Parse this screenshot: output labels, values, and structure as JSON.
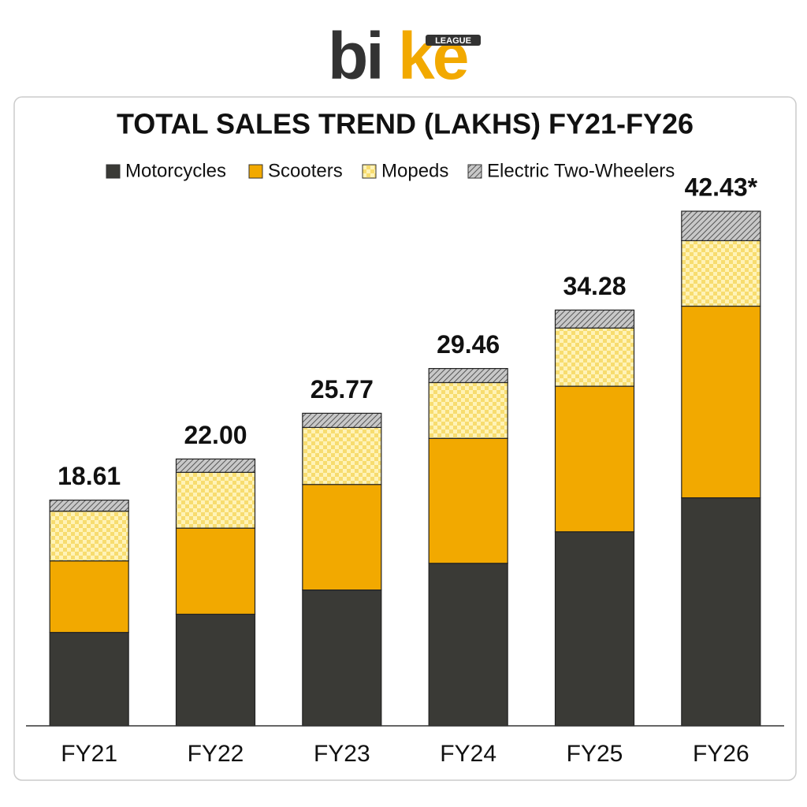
{
  "logo": {
    "parts": [
      "bi",
      "ke"
    ],
    "badge": "LEAGUE"
  },
  "chart_data": {
    "type": "stacked_bar",
    "title": "TOTAL SALES TREND (LAKHS) FY21-FY26",
    "categories": [
      "FY21",
      "FY22",
      "FY23",
      "FY24",
      "FY25",
      "FY26"
    ],
    "series": [
      {
        "name": "Motorcycles",
        "color": "#3a3a36",
        "pattern": "solid",
        "values": [
          7.7,
          9.2,
          11.2,
          13.4,
          16.0,
          18.8
        ]
      },
      {
        "name": "Scooters",
        "color": "#f2a900",
        "pattern": "solid",
        "values": [
          5.9,
          7.1,
          8.7,
          10.3,
          12.0,
          15.8
        ]
      },
      {
        "name": "Mopeds",
        "color": "#f7dc6f",
        "pattern": "checker",
        "values": [
          4.1,
          4.6,
          4.7,
          4.6,
          4.8,
          5.4
        ]
      },
      {
        "name": "Electric Two-Wheelers",
        "color": "#9a9a9a",
        "pattern": "hatch",
        "values": [
          0.91,
          1.1,
          1.17,
          1.16,
          1.48,
          2.43
        ]
      }
    ],
    "totals": [
      18.61,
      22,
      25.77,
      29.46,
      34.28,
      42.43
    ],
    "total_labels": [
      "18.61",
      "22.00",
      "25.77",
      "29.46",
      "34.28",
      "42.43*"
    ]
  }
}
